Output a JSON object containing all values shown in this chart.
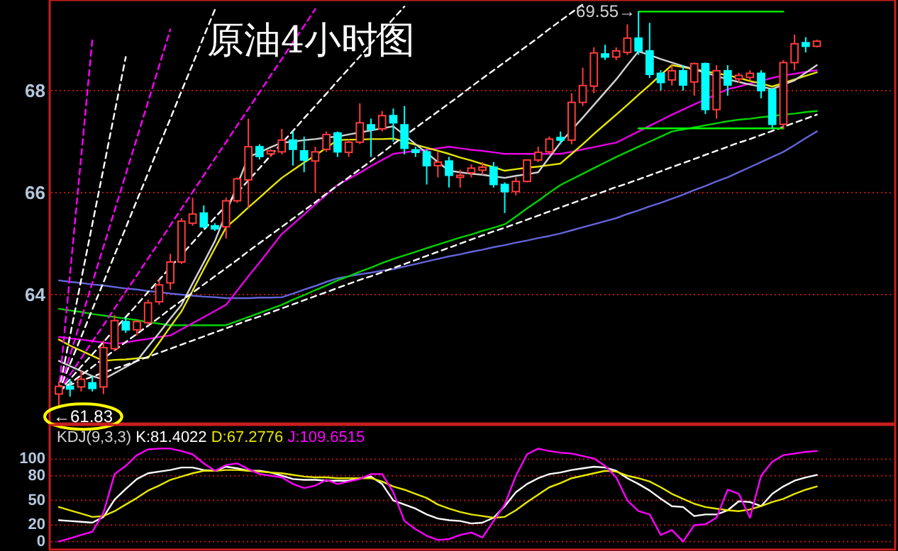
{
  "chart_data": [
    {
      "type": "candlestick",
      "title": "原油4小时图",
      "categories": [
        null,
        null,
        null,
        null,
        null,
        null,
        null,
        null,
        null,
        null,
        null,
        null,
        null,
        null,
        null,
        null,
        null,
        null,
        null,
        null,
        null,
        null,
        null,
        null,
        null,
        null,
        null,
        null,
        null,
        null,
        null,
        null,
        null,
        null,
        null,
        null,
        null,
        null,
        null,
        null,
        null,
        null,
        null,
        null,
        null,
        null,
        null,
        null,
        null,
        null,
        null,
        null,
        null,
        null,
        null,
        null,
        null,
        null,
        null,
        null,
        null,
        null,
        null,
        null,
        null,
        null,
        null,
        null,
        null
      ],
      "ohlc": [
        [
          62.05,
          62.3,
          61.83,
          62.2
        ],
        [
          62.2,
          62.35,
          62.0,
          62.15
        ],
        [
          62.19,
          62.5,
          62.1,
          62.34
        ],
        [
          62.27,
          62.4,
          62.1,
          62.16
        ],
        [
          62.19,
          63.1,
          62.05,
          62.96
        ],
        [
          62.94,
          63.6,
          62.9,
          63.49
        ],
        [
          63.47,
          63.55,
          63.25,
          63.31
        ],
        [
          63.31,
          63.5,
          63.2,
          63.47
        ],
        [
          63.45,
          63.9,
          63.4,
          63.84
        ],
        [
          63.86,
          64.3,
          63.8,
          64.19
        ],
        [
          64.23,
          64.8,
          64.1,
          64.64
        ],
        [
          64.64,
          65.5,
          64.6,
          65.44
        ],
        [
          65.4,
          65.9,
          65.35,
          65.58
        ],
        [
          65.6,
          65.75,
          65.3,
          65.33
        ],
        [
          65.35,
          65.4,
          65.25,
          65.29
        ],
        [
          65.33,
          65.9,
          65.1,
          65.84
        ],
        [
          65.84,
          66.3,
          65.8,
          66.27
        ],
        [
          66.25,
          67.45,
          65.7,
          66.9
        ],
        [
          66.9,
          66.95,
          66.65,
          66.71
        ],
        [
          66.76,
          66.85,
          66.7,
          66.82
        ],
        [
          66.8,
          67.25,
          66.75,
          67.03
        ],
        [
          67.03,
          67.2,
          66.53,
          66.85
        ],
        [
          66.82,
          67.1,
          66.4,
          66.64
        ],
        [
          66.62,
          66.9,
          66.0,
          66.8
        ],
        [
          66.85,
          67.2,
          66.8,
          67.14
        ],
        [
          67.17,
          67.2,
          66.7,
          66.8
        ],
        [
          66.79,
          67.05,
          66.7,
          66.99
        ],
        [
          66.99,
          67.75,
          66.95,
          67.37
        ],
        [
          67.33,
          67.45,
          66.7,
          67.24
        ],
        [
          67.25,
          67.6,
          67.2,
          67.51
        ],
        [
          67.51,
          67.65,
          67.0,
          67.37
        ],
        [
          67.33,
          67.7,
          66.75,
          66.87
        ],
        [
          66.84,
          66.9,
          66.7,
          66.79
        ],
        [
          66.8,
          66.85,
          66.16,
          66.53
        ],
        [
          66.53,
          66.8,
          66.3,
          66.6
        ],
        [
          66.62,
          66.7,
          66.1,
          66.34
        ],
        [
          66.3,
          66.45,
          66.1,
          66.34
        ],
        [
          66.39,
          66.55,
          66.3,
          66.48
        ],
        [
          66.44,
          66.6,
          66.35,
          66.5
        ],
        [
          66.5,
          66.6,
          66.1,
          66.16
        ],
        [
          66.16,
          66.2,
          65.6,
          66.02
        ],
        [
          66.02,
          66.3,
          65.95,
          66.22
        ],
        [
          66.22,
          66.65,
          66.2,
          66.64
        ],
        [
          66.64,
          66.9,
          66.6,
          66.79
        ],
        [
          66.8,
          67.1,
          66.75,
          67.05
        ],
        [
          67.08,
          67.2,
          66.95,
          67.03
        ],
        [
          67.03,
          67.95,
          66.95,
          67.77
        ],
        [
          67.77,
          68.45,
          67.7,
          68.1
        ],
        [
          68.09,
          68.85,
          67.95,
          68.74
        ],
        [
          68.72,
          68.9,
          68.6,
          68.66
        ],
        [
          68.66,
          68.85,
          68.6,
          68.78
        ],
        [
          68.75,
          69.3,
          68.7,
          69.03
        ],
        [
          69.03,
          69.55,
          68.7,
          68.78
        ],
        [
          68.78,
          69.33,
          68.25,
          68.32
        ],
        [
          68.34,
          68.4,
          68.0,
          68.16
        ],
        [
          68.21,
          68.5,
          68.1,
          68.39
        ],
        [
          68.39,
          68.5,
          68.0,
          68.11
        ],
        [
          68.17,
          68.55,
          67.9,
          68.53
        ],
        [
          68.53,
          68.55,
          67.54,
          67.63
        ],
        [
          67.63,
          68.5,
          67.45,
          68.39
        ],
        [
          68.39,
          68.5,
          67.9,
          68.11
        ],
        [
          68.23,
          68.35,
          68.15,
          68.3
        ],
        [
          68.26,
          68.4,
          68.2,
          68.34
        ],
        [
          68.34,
          68.4,
          67.85,
          68.0
        ],
        [
          68.02,
          68.05,
          67.25,
          67.34
        ],
        [
          67.34,
          68.6,
          67.25,
          68.55
        ],
        [
          68.55,
          69.1,
          68.4,
          68.92
        ],
        [
          68.94,
          69.05,
          68.75,
          68.87
        ],
        [
          68.87,
          69.0,
          68.85,
          68.97
        ]
      ],
      "colors": [
        "#ff3c3c",
        "#00ffff",
        "#ff3c3c",
        "#00ffff",
        "#ff3c3c",
        "#ff3c3c",
        "#00ffff",
        "#ff3c3c",
        "#ff3c3c",
        "#ff3c3c",
        "#ff3c3c",
        "#ff3c3c",
        "#ff3c3c",
        "#00ffff",
        "#00ffff",
        "#ff3c3c",
        "#ff3c3c",
        "#ff3c3c",
        "#00ffff",
        "#ff3c3c",
        "#ff3c3c",
        "#00ffff",
        "#00ffff",
        "#ff3c3c",
        "#ff3c3c",
        "#00ffff",
        "#ff3c3c",
        "#ff3c3c",
        "#00ffff",
        "#ff3c3c",
        "#00ffff",
        "#00ffff",
        "#00ffff",
        "#00ffff",
        "#ff3c3c",
        "#00ffff",
        "#ff3c3c",
        "#ff3c3c",
        "#ff3c3c",
        "#00ffff",
        "#00ffff",
        "#ff3c3c",
        "#ff3c3c",
        "#ff3c3c",
        "#ff3c3c",
        "#00ffff",
        "#ff3c3c",
        "#ff3c3c",
        "#ff3c3c",
        "#00ffff",
        "#ff3c3c",
        "#ff3c3c",
        "#00ffff",
        "#00ffff",
        "#00ffff",
        "#ff3c3c",
        "#00ffff",
        "#ff3c3c",
        "#00ffff",
        "#ff3c3c",
        "#00ffff",
        "#ff3c3c",
        "#ff3c3c",
        "#00ffff",
        "#00ffff",
        "#ff3c3c",
        "#ff3c3c",
        "#00ffff",
        "#ff3c3c"
      ],
      "series": [
        {
          "type": "line",
          "color": "#6464dc",
          "values": [
            64.28,
            64.25,
            64.23,
            64.2,
            64.18,
            64.15,
            64.12,
            64.1,
            64.07,
            64.05,
            64.02,
            64.0,
            63.98,
            63.96,
            63.95,
            63.93,
            63.93,
            63.93,
            63.94,
            63.94,
            63.95,
            64.02,
            64.1,
            64.17,
            64.25,
            64.32,
            64.36,
            64.4,
            64.43,
            64.47,
            64.5,
            64.55,
            64.6,
            64.65,
            64.7,
            64.75,
            64.79,
            64.84,
            64.88,
            64.93,
            64.97,
            65.02,
            65.06,
            65.11,
            65.15,
            65.2,
            65.26,
            65.32,
            65.38,
            65.44,
            65.5,
            65.58,
            65.65,
            65.73,
            65.8,
            65.88,
            65.96,
            66.05,
            66.13,
            66.22,
            66.3,
            66.4,
            66.5,
            66.6,
            66.7,
            66.8,
            66.93,
            67.07,
            67.2
          ]
        },
        {
          "type": "line",
          "color": "#00d200",
          "values": [
            63.72,
            63.69,
            63.66,
            63.62,
            63.59,
            63.56,
            63.53,
            63.5,
            63.46,
            63.43,
            63.4,
            63.4,
            63.4,
            63.4,
            63.4,
            63.4,
            63.48,
            63.56,
            63.64,
            63.72,
            63.8,
            63.9,
            63.99,
            64.09,
            64.18,
            64.28,
            64.36,
            64.45,
            64.53,
            64.62,
            64.7,
            64.77,
            64.84,
            64.91,
            64.98,
            65.05,
            65.12,
            65.18,
            65.25,
            65.31,
            65.38,
            65.53,
            65.69,
            65.84,
            66.0,
            66.15,
            66.26,
            66.37,
            66.48,
            66.59,
            66.7,
            66.8,
            66.9,
            67.0,
            67.1,
            67.2,
            67.24,
            67.28,
            67.32,
            67.36,
            67.4,
            67.43,
            67.45,
            67.48,
            67.5,
            67.53,
            67.55,
            67.58,
            67.6
          ]
        },
        {
          "type": "line",
          "color": "#e600e6",
          "values": [
            63.17,
            63.14,
            63.12,
            63.09,
            63.06,
            63.03,
            63.06,
            63.1,
            63.13,
            63.17,
            63.2,
            63.32,
            63.44,
            63.56,
            63.68,
            63.8,
            64.08,
            64.36,
            64.63,
            64.91,
            65.19,
            65.38,
            65.57,
            65.77,
            65.96,
            66.15,
            66.27,
            66.39,
            66.52,
            66.64,
            66.76,
            66.79,
            66.82,
            66.84,
            66.87,
            66.9,
            66.87,
            66.84,
            66.82,
            66.79,
            66.76,
            66.76,
            66.76,
            66.76,
            66.76,
            66.76,
            66.8,
            66.85,
            66.89,
            66.94,
            66.98,
            67.09,
            67.2,
            67.31,
            67.42,
            67.53,
            67.63,
            67.73,
            67.83,
            67.93,
            68.03,
            68.08,
            68.14,
            68.19,
            68.25,
            68.3,
            68.33,
            68.37,
            68.4
          ]
        },
        {
          "type": "line",
          "color": "#e6e600",
          "values": [
            63.12,
            63.0,
            62.9,
            62.8,
            62.7,
            62.72,
            62.73,
            62.75,
            62.76,
            63.06,
            63.37,
            63.67,
            64.08,
            64.5,
            64.91,
            65.32,
            65.51,
            65.71,
            65.9,
            66.1,
            66.29,
            66.44,
            66.59,
            66.73,
            66.88,
            67.03,
            67.04,
            67.04,
            67.05,
            67.05,
            67.06,
            67.0,
            66.94,
            66.88,
            66.82,
            66.76,
            66.69,
            66.63,
            66.56,
            66.5,
            66.43,
            66.46,
            66.49,
            66.51,
            66.54,
            66.57,
            66.76,
            66.95,
            67.15,
            67.34,
            67.53,
            67.72,
            67.92,
            68.11,
            68.31,
            68.5,
            68.46,
            68.42,
            68.38,
            68.34,
            68.3,
            68.25,
            68.19,
            68.14,
            68.08,
            68.15,
            68.22,
            68.29,
            68.36
          ]
        },
        {
          "type": "line",
          "color": "#d2d2d2",
          "values": [
            62.7,
            62.6,
            62.5,
            62.4,
            62.34,
            62.46,
            62.58,
            62.7,
            62.98,
            63.25,
            63.53,
            63.8,
            64.22,
            64.63,
            65.05,
            65.6,
            66.15,
            66.7,
            66.79,
            66.89,
            66.98,
            67.0,
            67.03,
            67.05,
            67.08,
            67.1,
            67.14,
            67.18,
            67.22,
            67.26,
            67.3,
            67.13,
            66.95,
            66.78,
            66.6,
            66.43,
            66.4,
            66.37,
            66.35,
            66.32,
            66.29,
            66.33,
            66.36,
            66.4,
            66.69,
            66.98,
            67.23,
            67.47,
            67.72,
            67.97,
            68.22,
            68.5,
            68.77,
            68.7,
            68.62,
            68.55,
            68.48,
            68.42,
            68.35,
            68.29,
            68.22,
            68.17,
            68.12,
            68.08,
            68.03,
            68.12,
            68.2,
            68.35,
            68.5
          ]
        },
        {
          "type": "line",
          "color": "#ff00ff",
          "line_style": "dashed",
          "values": [
            62.1,
            64.4,
            66.7,
            69.0,
            null,
            null,
            null,
            null,
            null,
            null,
            null,
            null,
            null,
            null,
            null,
            null,
            null,
            null,
            null,
            null,
            null,
            null,
            null,
            null,
            null,
            null,
            null,
            null,
            null,
            null,
            null,
            null,
            null,
            null,
            null,
            null,
            null,
            null,
            null,
            null,
            null,
            null,
            null,
            null,
            null,
            null,
            null,
            null,
            null,
            null,
            null,
            null,
            null,
            null,
            null,
            null,
            null,
            null,
            null,
            null,
            null,
            null,
            null,
            null,
            null,
            null,
            null,
            null,
            null
          ]
        },
        {
          "type": "line",
          "color": "#ffffff",
          "line_style": "dashed",
          "values": [
            62.1,
            63.19,
            64.29,
            65.38,
            66.47,
            67.57,
            68.66,
            null,
            null,
            null,
            null,
            null,
            null,
            null,
            null,
            null,
            null,
            null,
            null,
            null,
            null,
            null,
            null,
            null,
            null,
            null,
            null,
            null,
            null,
            null,
            null,
            null,
            null,
            null,
            null,
            null,
            null,
            null,
            null,
            null,
            null,
            null,
            null,
            null,
            null,
            null,
            null,
            null,
            null,
            null,
            null,
            null,
            null,
            null,
            null,
            null,
            null,
            null,
            null,
            null,
            null,
            null,
            null,
            null,
            null,
            null,
            null,
            null,
            null
          ]
        },
        {
          "type": "line",
          "color": "#ff00ff",
          "line_style": "dashed",
          "values": [
            62.1,
            62.81,
            63.52,
            64.23,
            64.94,
            65.65,
            66.36,
            67.07,
            67.78,
            68.49,
            69.2,
            null,
            null,
            null,
            null,
            null,
            null,
            null,
            null,
            null,
            null,
            null,
            null,
            null,
            null,
            null,
            null,
            null,
            null,
            null,
            null,
            null,
            null,
            null,
            null,
            null,
            null,
            null,
            null,
            null,
            null,
            null,
            null,
            null,
            null,
            null,
            null,
            null,
            null,
            null,
            null,
            null,
            null,
            null,
            null,
            null,
            null,
            null,
            null,
            null,
            null,
            null,
            null,
            null,
            null,
            null,
            null,
            null,
            null
          ]
        },
        {
          "type": "line",
          "color": "#ffffff",
          "line_style": "dashed",
          "values": [
            62.1,
            62.64,
            63.17,
            63.71,
            64.24,
            64.78,
            65.31,
            65.85,
            66.38,
            66.92,
            67.45,
            67.99,
            68.52,
            69.06,
            69.59,
            null,
            null,
            null,
            null,
            null,
            null,
            null,
            null,
            null,
            null,
            null,
            null,
            null,
            null,
            null,
            null,
            null,
            null,
            null,
            null,
            null,
            null,
            null,
            null,
            null,
            null,
            null,
            null,
            null,
            null,
            null,
            null,
            null,
            null,
            null,
            null,
            null,
            null,
            null,
            null,
            null,
            null,
            null,
            null,
            null,
            null,
            null,
            null,
            null,
            null,
            null,
            null,
            null,
            null
          ]
        },
        {
          "type": "line",
          "color": "#ff00ff",
          "line_style": "dashed",
          "values": [
            62.1,
            62.43,
            62.75,
            63.08,
            63.4,
            63.73,
            64.06,
            64.38,
            64.71,
            65.03,
            65.36,
            65.69,
            66.01,
            66.34,
            66.67,
            66.99,
            67.32,
            67.64,
            67.97,
            68.3,
            68.62,
            68.95,
            69.27,
            69.6,
            null,
            null,
            null,
            null,
            null,
            null,
            null,
            null,
            null,
            null,
            null,
            null,
            null,
            null,
            null,
            null,
            null,
            null,
            null,
            null,
            null,
            null,
            null,
            null,
            null,
            null,
            null,
            null,
            null,
            null,
            null,
            null,
            null,
            null,
            null,
            null,
            null,
            null,
            null,
            null,
            null,
            null,
            null,
            null,
            null
          ]
        },
        {
          "type": "line",
          "color": "#ffffff",
          "line_style": "dashed",
          "values": [
            62.1,
            62.34,
            62.59,
            62.83,
            63.07,
            63.32,
            63.56,
            63.8,
            64.05,
            64.29,
            64.54,
            64.78,
            65.02,
            65.27,
            65.51,
            65.75,
            66.0,
            66.24,
            66.48,
            66.73,
            66.97,
            67.21,
            67.46,
            67.7,
            67.94,
            68.19,
            68.43,
            68.67,
            68.92,
            69.16,
            69.41,
            69.65,
            null,
            null,
            null,
            null,
            null,
            null,
            null,
            null,
            null,
            null,
            null,
            null,
            null,
            null,
            null,
            null,
            null,
            null,
            null,
            null,
            null,
            null,
            null,
            null,
            null,
            null,
            null,
            null,
            null,
            null,
            null,
            null,
            null,
            null,
            null,
            null,
            null
          ]
        },
        {
          "type": "line",
          "color": "#ffffff",
          "line_style": "dashed",
          "values": [
            62.1,
            62.26,
            62.42,
            62.58,
            62.75,
            62.91,
            63.07,
            63.23,
            63.39,
            63.55,
            63.72,
            63.88,
            64.04,
            64.2,
            64.36,
            64.52,
            64.68,
            64.85,
            65.01,
            65.17,
            65.33,
            65.49,
            65.65,
            65.81,
            65.98,
            66.14,
            66.3,
            66.46,
            66.62,
            66.78,
            66.95,
            67.11,
            67.27,
            67.43,
            67.59,
            67.75,
            67.91,
            68.08,
            68.24,
            68.4,
            68.56,
            68.72,
            68.88,
            69.04,
            69.21,
            69.37,
            69.53,
            69.69,
            null,
            null,
            null,
            null,
            null,
            null,
            null,
            null,
            null,
            null,
            null,
            null,
            null,
            null,
            null,
            null,
            null,
            null,
            null,
            null,
            null
          ]
        },
        {
          "type": "line",
          "color": "#ffffff",
          "line_style": "dashed",
          "values": [
            62.15,
            62.23,
            62.31,
            62.39,
            62.47,
            62.55,
            62.62,
            62.7,
            62.78,
            62.86,
            62.94,
            63.02,
            63.1,
            63.18,
            63.26,
            63.34,
            63.42,
            63.5,
            63.57,
            63.65,
            63.73,
            63.81,
            63.89,
            63.97,
            64.05,
            64.13,
            64.21,
            64.29,
            64.36,
            64.44,
            64.52,
            64.6,
            64.68,
            64.76,
            64.84,
            64.92,
            65.0,
            65.08,
            65.16,
            65.24,
            65.31,
            65.39,
            65.47,
            65.55,
            65.63,
            65.71,
            65.79,
            65.87,
            65.95,
            66.03,
            66.11,
            66.18,
            66.26,
            66.34,
            66.42,
            66.5,
            66.58,
            66.66,
            66.74,
            66.82,
            66.9,
            66.98,
            67.05,
            67.13,
            67.21,
            67.29,
            67.37,
            67.45,
            67.53
          ]
        },
        {
          "type": "line",
          "color": "#00ff00",
          "values": [
            null,
            null,
            null,
            null,
            null,
            null,
            null,
            null,
            null,
            null,
            null,
            null,
            null,
            null,
            null,
            null,
            null,
            null,
            null,
            null,
            null,
            null,
            null,
            null,
            null,
            null,
            null,
            null,
            null,
            null,
            null,
            null,
            null,
            null,
            null,
            null,
            null,
            null,
            null,
            null,
            null,
            null,
            null,
            null,
            null,
            null,
            null,
            null,
            null,
            null,
            null,
            null,
            69.55,
            69.55,
            69.55,
            69.55,
            69.55,
            69.55,
            69.55,
            69.55,
            69.55,
            69.55,
            69.55,
            69.55,
            69.55,
            69.55,
            null,
            null,
            null
          ]
        },
        {
          "type": "line",
          "color": "#00ff00",
          "values": [
            null,
            null,
            null,
            null,
            null,
            null,
            null,
            null,
            null,
            null,
            null,
            null,
            null,
            null,
            null,
            null,
            null,
            null,
            null,
            null,
            null,
            null,
            null,
            null,
            null,
            null,
            null,
            null,
            null,
            null,
            null,
            null,
            null,
            null,
            null,
            null,
            null,
            null,
            null,
            null,
            null,
            null,
            null,
            null,
            null,
            null,
            null,
            null,
            null,
            null,
            null,
            null,
            67.26,
            67.26,
            67.26,
            67.26,
            67.26,
            67.26,
            67.26,
            67.26,
            67.26,
            67.26,
            67.26,
            67.26,
            67.26,
            67.26,
            null,
            null,
            null
          ]
        }
      ],
      "ylim": [
        61.5,
        69.75
      ],
      "yticks": [
        64,
        66,
        68
      ],
      "grid": "y",
      "annotations": [
        "←61.83",
        "69.55→"
      ]
    },
    {
      "type": "line",
      "title": "KDJ(9,3,3)",
      "categories": [
        null,
        null,
        null,
        null,
        null,
        null,
        null,
        null,
        null,
        null,
        null,
        null,
        null,
        null,
        null,
        null,
        null,
        null,
        null,
        null,
        null,
        null,
        null,
        null,
        null,
        null,
        null,
        null,
        null,
        null,
        null,
        null,
        null,
        null,
        null,
        null,
        null,
        null,
        null,
        null,
        null,
        null,
        null,
        null,
        null,
        null,
        null,
        null,
        null,
        null,
        null,
        null,
        null,
        null,
        null,
        null,
        null,
        null,
        null,
        null,
        null,
        null,
        null,
        null,
        null,
        null,
        null,
        null,
        null
      ],
      "series": [
        {
          "name": "K:81.4022",
          "color": "#ffffff",
          "values": [
            26,
            25,
            24,
            23,
            30,
            51,
            64,
            76,
            83,
            85,
            87,
            90,
            90,
            87,
            86,
            91,
            89,
            86,
            86,
            84,
            80,
            76,
            75,
            75,
            74,
            74,
            74,
            77,
            79,
            70,
            50,
            45,
            40,
            33,
            28,
            26,
            25,
            22,
            23,
            29,
            43,
            60,
            70,
            77,
            82,
            84,
            87,
            89,
            91,
            90,
            86,
            77,
            70,
            62,
            52,
            43,
            42,
            31,
            33,
            33,
            38,
            49,
            48,
            43,
            58,
            67,
            74,
            78,
            81
          ]
        },
        {
          "name": "D:67.2776",
          "color": "#e6e600",
          "values": [
            42,
            38,
            34,
            30,
            31,
            37,
            45,
            53,
            62,
            68,
            75,
            79,
            83,
            86,
            86,
            87,
            87,
            86,
            85,
            84,
            83,
            81,
            79,
            78,
            78,
            77,
            77,
            77,
            77,
            73,
            67,
            63,
            58,
            53,
            45,
            40,
            36,
            33,
            31,
            29,
            30,
            38,
            48,
            57,
            66,
            71,
            77,
            80,
            83,
            86,
            85,
            80,
            77,
            73,
            66,
            58,
            52,
            46,
            42,
            40,
            38,
            37,
            39,
            43,
            48,
            52,
            58,
            63,
            67
          ]
        },
        {
          "name": "J:109.6515",
          "color": "#ff00ff",
          "values": [
            0,
            4,
            8,
            12,
            35,
            82,
            92,
            105,
            112,
            113,
            113,
            110,
            106,
            95,
            86,
            93,
            95,
            88,
            82,
            80,
            78,
            70,
            65,
            68,
            75,
            70,
            73,
            76,
            82,
            82,
            60,
            25,
            15,
            7,
            2,
            3,
            8,
            11,
            5,
            25,
            45,
            80,
            106,
            113,
            110,
            108,
            107,
            104,
            101,
            92,
            78,
            50,
            37,
            33,
            8,
            14,
            0,
            20,
            21,
            29,
            63,
            58,
            29,
            80,
            97,
            105,
            107,
            109,
            110
          ]
        }
      ],
      "ylim": [
        -8,
        140
      ],
      "yticks": [
        0,
        20,
        50,
        80,
        100
      ],
      "grid": "y",
      "legend": "top left"
    }
  ]
}
